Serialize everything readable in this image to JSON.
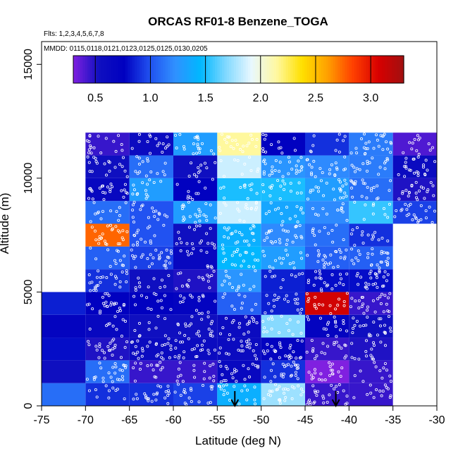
{
  "chart_data": {
    "type": "heatmap",
    "title": "ORCAS RF01-8 Benzene_TOGA",
    "flights_note": "Flts: 1,2,3,4,5,6,7,8",
    "dates_note": "MMDD: 0115,0118,0121,0123,0125,0125,0130,0205",
    "xlabel": "Latitude (deg N)",
    "ylabel": "Altitude (m)",
    "xlim": [
      -75,
      -30
    ],
    "ylim": [
      0,
      16000
    ],
    "x_ticks": [
      -75,
      -70,
      -65,
      -60,
      -55,
      -50,
      -45,
      -40,
      -35,
      -30
    ],
    "y_ticks": [
      0,
      5000,
      10000,
      15000
    ],
    "colorbar": {
      "range": [
        0.3,
        3.3
      ],
      "ticks": [
        0.5,
        1.0,
        1.5,
        2.0,
        2.5,
        3.0
      ],
      "tick_labels": [
        "0.5",
        "1.0",
        "1.5",
        "2.0",
        "2.5",
        "3.0"
      ],
      "colors": [
        "#8020e0",
        "#1010c0",
        "#0000c0",
        "#2050f0",
        "#3090ff",
        "#00b8ff",
        "#80d8ff",
        "#e8f8ff",
        "#fff8a0",
        "#ffe000",
        "#ffa000",
        "#ff4000",
        "#d80000",
        "#a01010"
      ]
    },
    "bin_width_deg": 5,
    "bin_height_m": 1000,
    "lat_bin_starts": [
      -75,
      -70,
      -65,
      -60,
      -55,
      -50,
      -45,
      -40,
      -35
    ],
    "rows_alt_m": [
      {
        "alt": 0,
        "values": [
          null,
          0.9,
          0.9,
          0.95,
          1.4,
          1.75,
          0.45,
          0.45,
          null
        ]
      },
      {
        "alt": 1000,
        "values": [
          null,
          1.1,
          0.45,
          0.45,
          0.65,
          0.9,
          0.3,
          0.45,
          null
        ]
      },
      {
        "alt": 2000,
        "values": [
          null,
          0.5,
          0.6,
          0.6,
          0.6,
          0.7,
          0.45,
          0.5,
          null
        ]
      },
      {
        "alt": 3000,
        "values": [
          null,
          0.65,
          0.55,
          0.55,
          0.6,
          1.7,
          0.7,
          0.55,
          null
        ]
      },
      {
        "alt": 4000,
        "values": [
          null,
          0.75,
          0.75,
          0.7,
          1.05,
          0.85,
          3.1,
          0.45,
          null
        ]
      },
      {
        "alt": 5000,
        "values": [
          null,
          0.9,
          0.55,
          0.5,
          1.25,
          0.85,
          0.8,
          0.8,
          null
        ]
      },
      {
        "alt": 6000,
        "values": [
          null,
          1.05,
          0.95,
          0.65,
          1.45,
          1.3,
          1.05,
          1.05,
          null
        ]
      },
      {
        "alt": 7000,
        "values": [
          null,
          2.75,
          1.0,
          0.55,
          1.4,
          1.2,
          1.1,
          0.9,
          null
        ]
      },
      {
        "alt": 8000,
        "values": [
          null,
          1.1,
          1.0,
          1.3,
          1.85,
          1.35,
          1.2,
          1.55,
          0.95
        ]
      },
      {
        "alt": 9000,
        "values": [
          null,
          0.65,
          1.3,
          0.75,
          1.5,
          1.5,
          1.3,
          1.1,
          0.5
        ]
      },
      {
        "alt": 10000,
        "values": [
          null,
          0.55,
          1.1,
          0.55,
          1.85,
          1.25,
          1.2,
          1.15,
          0.6
        ]
      },
      {
        "alt": 11000,
        "values": [
          null,
          0.45,
          0.6,
          1.3,
          2.15,
          0.75,
          0.9,
          1.15,
          0.4
        ]
      }
    ],
    "extra_cells": [
      {
        "lat_start": -75,
        "alt": 0,
        "value": 1.1
      },
      {
        "lat_start": -75,
        "alt": 1000,
        "value": 0.55
      },
      {
        "lat_start": -75,
        "alt": 2000,
        "value": 0.8
      },
      {
        "lat_start": -75,
        "alt": 3000,
        "value": 0.7
      },
      {
        "lat_start": -75,
        "alt": 4000,
        "value": 0.85
      },
      {
        "lat_start": -35,
        "alt": 0,
        "value": null
      }
    ],
    "arrows_lat": [
      -53,
      -41.5
    ]
  }
}
